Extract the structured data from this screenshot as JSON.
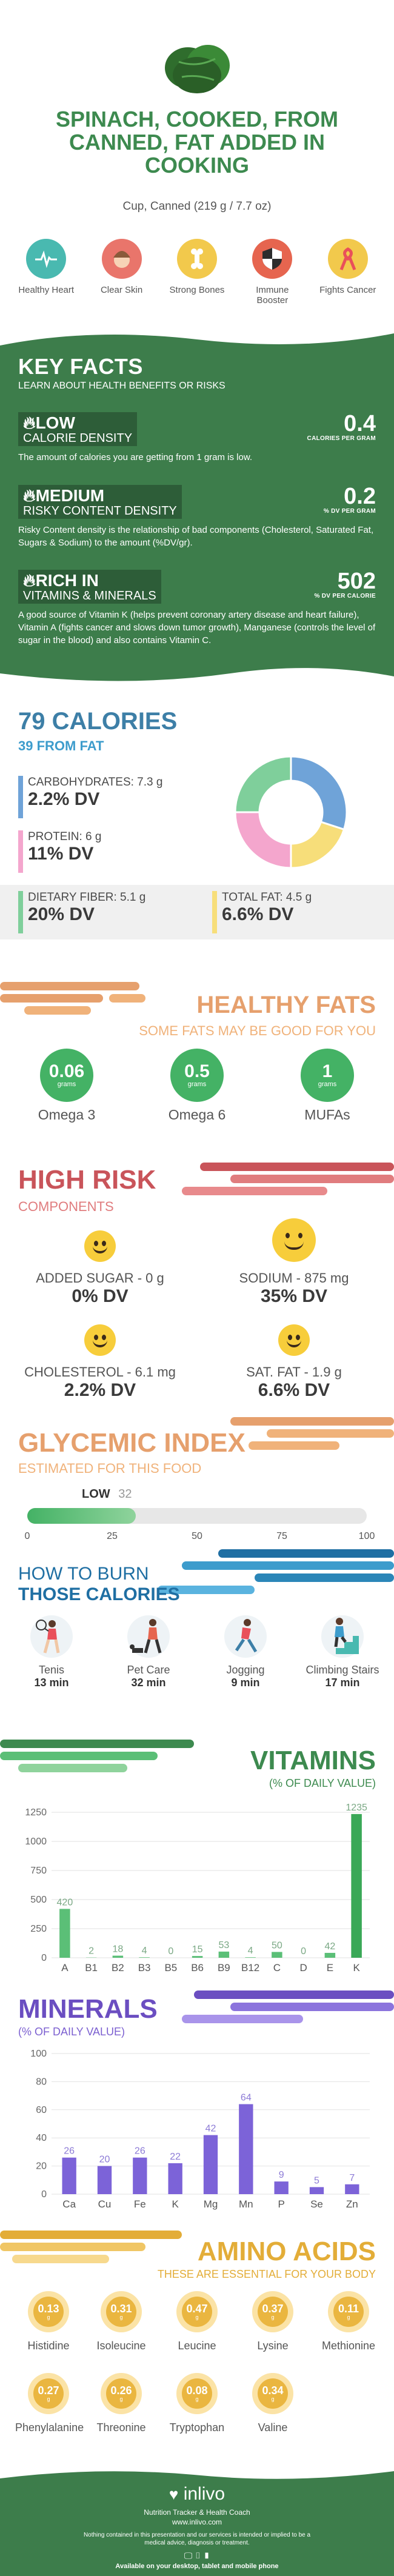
{
  "header": {
    "title": "SPINACH, COOKED, FROM CANNED, FAT ADDED IN COOKING",
    "serving": "Cup, Canned (219 g / 7.7 oz)"
  },
  "benefits": [
    {
      "label": "Healthy Heart",
      "icon": "heart-monitor-icon",
      "color": "#49b9b0"
    },
    {
      "label": "Clear Skin",
      "icon": "face-icon",
      "color": "#e9756b"
    },
    {
      "label": "Strong Bones",
      "icon": "bone-icon",
      "color": "#f2c94c"
    },
    {
      "label": "Immune Booster",
      "icon": "shield-icon",
      "color": "#e6654f"
    },
    {
      "label": "Fights Cancer",
      "icon": "ribbon-icon",
      "color": "#f2c94c"
    }
  ],
  "key_facts": {
    "title": "KEY FACTS",
    "subtitle": "LEARN ABOUT HEALTH BENEFITS OR RISKS",
    "calorie_density": {
      "level": "LOW",
      "label": "CALORIE DENSITY",
      "value": "0.4",
      "unit": "CALORIES PER GRAM",
      "text": "The amount of calories you are getting from 1 gram is low."
    },
    "risky_content": {
      "level": "MEDIUM",
      "label": "RISKY CONTENT DENSITY",
      "value": "0.2",
      "unit": "% DV PER GRAM",
      "text": "Risky Content density is the relationship of bad components (Cholesterol, Saturated Fat, Sugars & Sodium) to the amount (%DV/gr)."
    },
    "vitamins_minerals": {
      "level": "RICH IN",
      "label": "VITAMINS & MINERALS",
      "value": "502",
      "unit": "% DV PER CALORIE",
      "text": "A good source of Vitamin K (helps prevent coronary artery disease and heart failure), Vitamin A (fights cancer and slows down tumor growth), Manganese (controls the level of sugar in the blood) and also contains Vitamin C."
    }
  },
  "calories": {
    "title": "79 CALORIES",
    "from_fat": "39 FROM FAT",
    "carbs": {
      "label": "CARBOHYDRATES: 7.3 g",
      "dv": "2.2% DV"
    },
    "protein": {
      "label": "PROTEIN: 6 g",
      "dv": "11% DV"
    },
    "fiber": {
      "label": "DIETARY FIBER: 5.1 g",
      "dv": "20% DV"
    },
    "fat": {
      "label": "TOTAL FAT: 4.5 g",
      "dv": "6.6% DV"
    },
    "donut": [
      {
        "name": "carbohydrates",
        "value": 30,
        "color": "#6fa3d8"
      },
      {
        "name": "total fat",
        "value": 20,
        "color": "#f7de7a"
      },
      {
        "name": "protein",
        "value": 25,
        "color": "#f4a6cd"
      },
      {
        "name": "dietary fiber",
        "value": 25,
        "color": "#7fcf9b"
      }
    ]
  },
  "healthy_fats": {
    "title": "HEALTHY FATS",
    "subtitle": "SOME FATS MAY BE GOOD FOR YOU",
    "items": [
      {
        "value": "0.06",
        "unit": "grams",
        "name": "Omega 3"
      },
      {
        "value": "0.5",
        "unit": "grams",
        "name": "Omega 6"
      },
      {
        "value": "1",
        "unit": "grams",
        "name": "MUFAs"
      }
    ]
  },
  "high_risk": {
    "title": "HIGH RISK",
    "subtitle": "COMPONENTS",
    "items": [
      {
        "label": "ADDED SUGAR - 0 g",
        "dv": "0% DV"
      },
      {
        "label": "SODIUM - 875 mg",
        "dv": "35% DV"
      },
      {
        "label": "CHOLESTEROL - 6.1 mg",
        "dv": "2.2% DV"
      },
      {
        "label": "SAT. FAT - 1.9 g",
        "dv": "6.6% DV"
      }
    ]
  },
  "glycemic": {
    "title": "GLYCEMIC INDEX",
    "subtitle": "ESTIMATED FOR THIS FOOD",
    "level": "LOW",
    "value": "32",
    "ticks": [
      "0",
      "25",
      "50",
      "75",
      "100"
    ]
  },
  "burn": {
    "title1": "HOW TO BURN",
    "title2": "THOSE CALORIES",
    "activities": [
      {
        "name": "Tenis",
        "minutes": "13 min"
      },
      {
        "name": "Pet Care",
        "minutes": "32 min"
      },
      {
        "name": "Jogging",
        "minutes": "9 min"
      },
      {
        "name": "Climbing Stairs",
        "minutes": "17 min"
      }
    ]
  },
  "vitamins_title": "VITAMINS",
  "vitamins_subtitle": "(% OF DAILY VALUE)",
  "minerals_title": "MINERALS",
  "minerals_subtitle": "(% OF DAILY VALUE)",
  "chart_data": [
    {
      "type": "bar",
      "categories": [
        "A",
        "B1",
        "B2",
        "B3",
        "B5",
        "B6",
        "B9",
        "B12",
        "C",
        "D",
        "E",
        "K"
      ],
      "values": [
        420,
        2,
        18,
        4,
        0,
        15,
        53,
        4,
        50,
        0,
        42,
        1235
      ],
      "value_labels": [
        "420",
        "2",
        "18",
        "4",
        "0",
        "15",
        "53",
        "4",
        "50",
        "0",
        "42",
        "1235"
      ],
      "yticks": [
        "0",
        "250",
        "500",
        "750",
        "1000",
        "1250"
      ],
      "ylim": [
        0,
        1250
      ],
      "color": "#5bbf77",
      "highlight": "#3aa857"
    },
    {
      "type": "bar",
      "categories": [
        "Ca",
        "Cu",
        "Fe",
        "K",
        "Mg",
        "Mn",
        "P",
        "Se",
        "Zn"
      ],
      "values": [
        26,
        20,
        26,
        22,
        42,
        64,
        9,
        5,
        7
      ],
      "value_labels": [
        "26",
        "20",
        "26",
        "22",
        "42",
        "64",
        "9",
        "5",
        "7"
      ],
      "yticks": [
        "0",
        "20",
        "40",
        "60",
        "80",
        "100"
      ],
      "ylim": [
        0,
        100
      ],
      "color": "#7c63d8"
    }
  ],
  "amino": {
    "title": "AMINO ACIDS",
    "subtitle": "THESE ARE ESSENTIAL FOR YOUR BODY",
    "items": [
      {
        "value": "0.13",
        "unit": "g",
        "name": "Histidine"
      },
      {
        "value": "0.31",
        "unit": "g",
        "name": "Isoleucine"
      },
      {
        "value": "0.47",
        "unit": "g",
        "name": "Leucine"
      },
      {
        "value": "0.37",
        "unit": "g",
        "name": "Lysine"
      },
      {
        "value": "0.11",
        "unit": "g",
        "name": "Methionine"
      },
      {
        "value": "0.27",
        "unit": "g",
        "name": "Phenylalanine"
      },
      {
        "value": "0.26",
        "unit": "g",
        "name": "Threonine"
      },
      {
        "value": "0.08",
        "unit": "g",
        "name": "Tryptophan"
      },
      {
        "value": "0.34",
        "unit": "g",
        "name": "Valine"
      }
    ]
  },
  "footer": {
    "brand": "inlivo",
    "tagline": "Nutrition Tracker & Health Coach",
    "url": "www.inlivo.com",
    "disclaimer": "Nothing contained in this presentation and our services is intended or implied to be a medical advice, diagnosis or treatment.",
    "available": "Available on your desktop, tablet and mobile phone"
  }
}
